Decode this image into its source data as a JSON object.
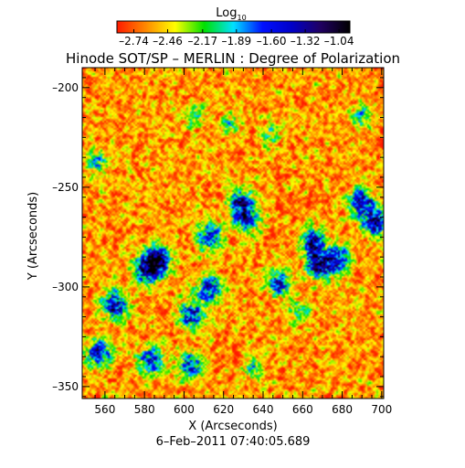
{
  "chart_data": {
    "type": "heatmap",
    "title": "Hinode SOT/SP – MERLIN : Degree of Polarization",
    "xlabel": "X (Arcseconds)",
    "ylabel": "Y (Arcseconds)",
    "timestamp": "6–Feb–2011 07:40:05.689",
    "xlim": [
      548.5,
      701
    ],
    "ylim": [
      -356,
      -190
    ],
    "x_ticks": [
      {
        "value": 560,
        "label": "560"
      },
      {
        "value": 580,
        "label": "580"
      },
      {
        "value": 600,
        "label": "600"
      },
      {
        "value": 620,
        "label": "620"
      },
      {
        "value": 640,
        "label": "640"
      },
      {
        "value": 660,
        "label": "660"
      },
      {
        "value": 680,
        "label": "680"
      },
      {
        "value": 700,
        "label": "700"
      }
    ],
    "y_ticks": [
      {
        "value": -200,
        "label": "–200"
      },
      {
        "value": -250,
        "label": "–250"
      },
      {
        "value": -300,
        "label": "–300"
      },
      {
        "value": -350,
        "label": "–350"
      }
    ],
    "colorbar": {
      "label_base": "Log",
      "label_sub": "10",
      "range": [
        -2.88,
        -0.95
      ],
      "ticks": [
        {
          "value": -2.74,
          "label": "–2.74"
        },
        {
          "value": -2.46,
          "label": "–2.46"
        },
        {
          "value": -2.17,
          "label": "–2.17"
        },
        {
          "value": -1.89,
          "label": "–1.89"
        },
        {
          "value": -1.6,
          "label": "–1.60"
        },
        {
          "value": -1.32,
          "label": "–1.32"
        },
        {
          "value": -1.04,
          "label": "–1.04"
        }
      ],
      "colors": [
        "#ff1a00",
        "#ff8a00",
        "#ffff00",
        "#00e000",
        "#00e0ff",
        "#0010ff",
        "#0000c8",
        "#200060",
        "#000000"
      ]
    },
    "data_summary": {
      "background_level": -2.6,
      "enhanced_regions": [
        {
          "x": 565,
          "y": -309,
          "value": -1.3
        },
        {
          "x": 581,
          "y": -291,
          "value": -1.2
        },
        {
          "x": 587,
          "y": -287,
          "value": -1.1
        },
        {
          "x": 604,
          "y": -314,
          "value": -1.4
        },
        {
          "x": 613,
          "y": -301,
          "value": -1.5
        },
        {
          "x": 613,
          "y": -275,
          "value": -1.5
        },
        {
          "x": 628,
          "y": -258,
          "value": -1.4
        },
        {
          "x": 632,
          "y": -266,
          "value": -1.6
        },
        {
          "x": 648,
          "y": -298,
          "value": -1.6
        },
        {
          "x": 665,
          "y": -278,
          "value": -1.3
        },
        {
          "x": 668,
          "y": -289,
          "value": -1.3
        },
        {
          "x": 677,
          "y": -286,
          "value": -1.4
        },
        {
          "x": 690,
          "y": -258,
          "value": -1.4
        },
        {
          "x": 697,
          "y": -268,
          "value": -1.3
        },
        {
          "x": 557,
          "y": -333,
          "value": -1.4
        },
        {
          "x": 583,
          "y": -337,
          "value": -1.5
        },
        {
          "x": 603,
          "y": -339,
          "value": -1.6
        }
      ],
      "moderate_regions": [
        {
          "x": 556,
          "y": -237,
          "value": -1.9
        },
        {
          "x": 605,
          "y": -214,
          "value": -2.0
        },
        {
          "x": 624,
          "y": -218,
          "value": -2.1
        },
        {
          "x": 643,
          "y": -223,
          "value": -2.1
        },
        {
          "x": 690,
          "y": -215,
          "value": -2.0
        },
        {
          "x": 658,
          "y": -312,
          "value": -2.0
        },
        {
          "x": 635,
          "y": -341,
          "value": -2.0
        }
      ]
    }
  }
}
